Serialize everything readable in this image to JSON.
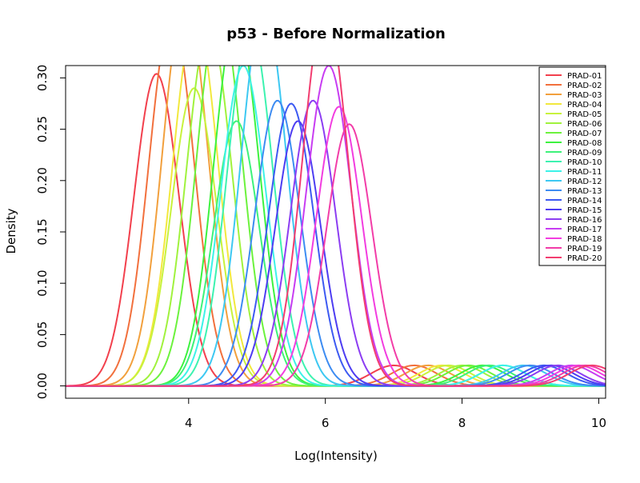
{
  "chart_data": {
    "type": "line",
    "title": "p53 - Before Normalization",
    "xlabel": "Log(Intensity)",
    "ylabel": "Density",
    "xlim": [
      2.2,
      10.1
    ],
    "ylim": [
      -0.012,
      0.312
    ],
    "x_ticks": [
      4,
      6,
      8,
      10
    ],
    "y_ticks": [
      0.0,
      0.05,
      0.1,
      0.15,
      0.2,
      0.25,
      0.3
    ],
    "y_tick_labels": [
      "0.00",
      "0.05",
      "0.10",
      "0.15",
      "0.20",
      "0.25",
      "0.30"
    ],
    "grid": false,
    "legend_position": "top-right",
    "curve_model": "bimodal",
    "series": [
      {
        "name": "PRAD-01",
        "color": "#f2404d",
        "peaks": [
          {
            "mu": 3.53,
            "peak": 0.304
          },
          {
            "mu": 7.0,
            "peak": 0.02
          }
        ]
      },
      {
        "name": "PRAD-02",
        "color": "#f2703d",
        "peaks": [
          {
            "mu": 3.75,
            "peak": 0.36
          },
          {
            "mu": 7.3,
            "peak": 0.02
          }
        ]
      },
      {
        "name": "PRAD-03",
        "color": "#f2a03d",
        "peaks": [
          {
            "mu": 3.95,
            "peak": 0.38
          },
          {
            "mu": 7.5,
            "peak": 0.02
          }
        ]
      },
      {
        "name": "PRAD-04",
        "color": "#f2e83d",
        "peaks": [
          {
            "mu": 4.1,
            "peak": 0.36
          },
          {
            "mu": 7.7,
            "peak": 0.02
          }
        ]
      },
      {
        "name": "PRAD-05",
        "color": "#c8f23d",
        "peaks": [
          {
            "mu": 4.08,
            "peak": 0.29
          },
          {
            "mu": 7.8,
            "peak": 0.02
          }
        ]
      },
      {
        "name": "PRAD-06",
        "color": "#a0f23d",
        "peaks": [
          {
            "mu": 4.3,
            "peak": 0.35
          },
          {
            "mu": 8.0,
            "peak": 0.02
          }
        ]
      },
      {
        "name": "PRAD-07",
        "color": "#6cf23d",
        "peaks": [
          {
            "mu": 4.45,
            "peak": 0.37
          },
          {
            "mu": 8.1,
            "peak": 0.02
          }
        ]
      },
      {
        "name": "PRAD-08",
        "color": "#3df240",
        "peaks": [
          {
            "mu": 4.7,
            "peak": 0.36
          },
          {
            "mu": 8.3,
            "peak": 0.02
          }
        ]
      },
      {
        "name": "PRAD-09",
        "color": "#3df27a",
        "peaks": [
          {
            "mu": 4.7,
            "peak": 0.258
          },
          {
            "mu": 8.4,
            "peak": 0.02
          }
        ]
      },
      {
        "name": "PRAD-10",
        "color": "#3df2b0",
        "peaks": [
          {
            "mu": 4.9,
            "peak": 0.35
          },
          {
            "mu": 8.6,
            "peak": 0.02
          }
        ]
      },
      {
        "name": "PRAD-11",
        "color": "#3df2e8",
        "peaks": [
          {
            "mu": 4.8,
            "peak": 0.312
          },
          {
            "mu": 8.6,
            "peak": 0.02
          }
        ]
      },
      {
        "name": "PRAD-12",
        "color": "#3dc8f2",
        "peaks": [
          {
            "mu": 5.1,
            "peak": 0.37
          },
          {
            "mu": 8.9,
            "peak": 0.02
          }
        ]
      },
      {
        "name": "PRAD-13",
        "color": "#3d8cf2",
        "peaks": [
          {
            "mu": 5.3,
            "peak": 0.278
          },
          {
            "mu": 9.0,
            "peak": 0.02
          }
        ]
      },
      {
        "name": "PRAD-14",
        "color": "#3d5af2",
        "peaks": [
          {
            "mu": 5.5,
            "peak": 0.275
          },
          {
            "mu": 9.2,
            "peak": 0.02
          }
        ]
      },
      {
        "name": "PRAD-15",
        "color": "#4d3df2",
        "peaks": [
          {
            "mu": 5.6,
            "peak": 0.258
          },
          {
            "mu": 9.3,
            "peak": 0.02
          }
        ]
      },
      {
        "name": "PRAD-16",
        "color": "#8c3df2",
        "peaks": [
          {
            "mu": 5.82,
            "peak": 0.278
          },
          {
            "mu": 9.4,
            "peak": 0.02
          }
        ]
      },
      {
        "name": "PRAD-17",
        "color": "#c83df2",
        "peaks": [
          {
            "mu": 6.05,
            "peak": 0.312
          },
          {
            "mu": 9.6,
            "peak": 0.02
          }
        ]
      },
      {
        "name": "PRAD-18",
        "color": "#f23de0",
        "peaks": [
          {
            "mu": 6.2,
            "peak": 0.272
          },
          {
            "mu": 9.7,
            "peak": 0.02
          }
        ]
      },
      {
        "name": "PRAD-19",
        "color": "#f23da8",
        "peaks": [
          {
            "mu": 6.35,
            "peak": 0.255
          },
          {
            "mu": 9.8,
            "peak": 0.02
          }
        ]
      },
      {
        "name": "PRAD-20",
        "color": "#f23d70",
        "peaks": [
          {
            "mu": 6.0,
            "peak": 0.37
          },
          {
            "mu": 9.9,
            "peak": 0.02
          }
        ]
      }
    ]
  }
}
